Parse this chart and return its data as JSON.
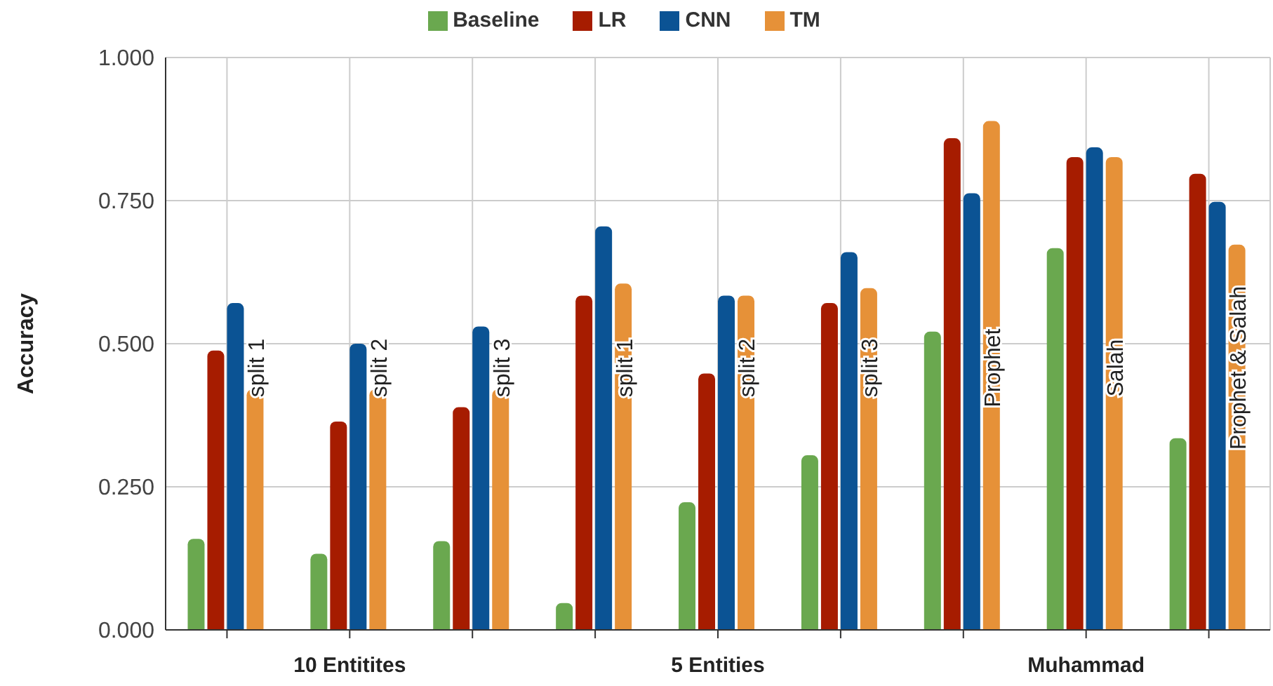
{
  "chart_data": {
    "type": "bar",
    "categories": [
      "split 1",
      "split 2",
      "split 3",
      "split 1",
      "split 2",
      "split 3",
      "Prophet",
      "Salah",
      "Prophet & Salah"
    ],
    "series": [
      {
        "name": "Baseline",
        "color": "#6aa84f",
        "values": [
          0.159,
          0.133,
          0.155,
          0.047,
          0.223,
          0.305,
          0.521,
          0.667,
          0.335
        ]
      },
      {
        "name": "LR",
        "color": "#a61c00",
        "values": [
          0.488,
          0.364,
          0.389,
          0.584,
          0.448,
          0.571,
          0.859,
          0.826,
          0.797
        ]
      },
      {
        "name": "CNN",
        "color": "#0b5394",
        "values": [
          0.571,
          0.5,
          0.53,
          0.705,
          0.584,
          0.66,
          0.763,
          0.843,
          0.748
        ]
      },
      {
        "name": "TM",
        "color": "#e69138",
        "values": [
          0.42,
          0.42,
          0.42,
          0.605,
          0.584,
          0.597,
          0.889,
          0.826,
          0.673
        ]
      }
    ],
    "ylabel": "Accuracy",
    "ylim": [
      0,
      1
    ],
    "yticks": [
      {
        "value": 0,
        "label": "0.000"
      },
      {
        "value": 0.25,
        "label": "0.250"
      },
      {
        "value": 0.5,
        "label": "0.500"
      },
      {
        "value": 0.75,
        "label": "0.750"
      },
      {
        "value": 1,
        "label": "1.000"
      }
    ],
    "annotations": [
      "10 Entitites",
      "5 Entities",
      "Muhammad"
    ],
    "grid": true,
    "legend": "top"
  }
}
